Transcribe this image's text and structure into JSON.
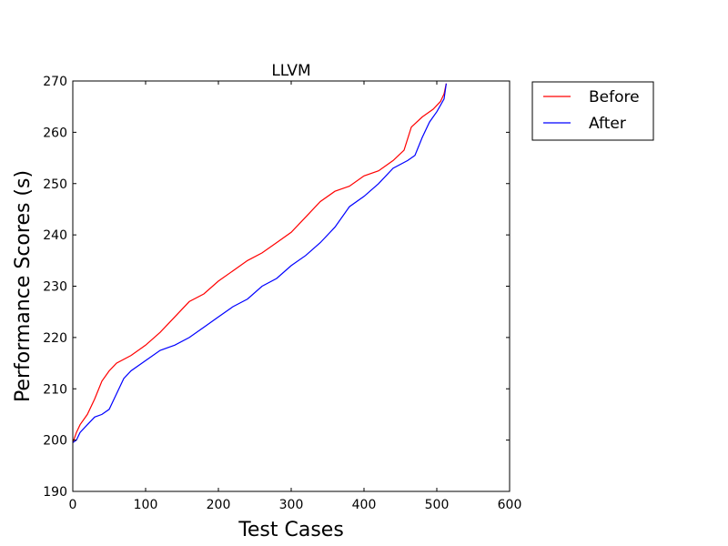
{
  "chart_data": {
    "type": "line",
    "title": "LLVM",
    "xlabel": "Test Cases",
    "ylabel": "Performance Scores (s)",
    "xlim": [
      0,
      600
    ],
    "ylim": [
      190,
      270
    ],
    "xticks": [
      0,
      100,
      200,
      300,
      400,
      500,
      600
    ],
    "yticks": [
      190,
      200,
      210,
      220,
      230,
      240,
      250,
      260,
      270
    ],
    "grid": false,
    "legend_position": "outside-top-right",
    "series": [
      {
        "name": "Before",
        "color": "#ff0000",
        "x": [
          0,
          5,
          10,
          20,
          30,
          40,
          50,
          60,
          80,
          100,
          120,
          140,
          160,
          180,
          200,
          220,
          240,
          260,
          280,
          300,
          320,
          340,
          360,
          380,
          400,
          420,
          440,
          455,
          465,
          480,
          495,
          505,
          510,
          513
        ],
        "y": [
          199.5,
          201.5,
          203,
          205,
          208,
          211.5,
          213.5,
          215,
          216.5,
          218.5,
          221,
          224,
          227,
          228.5,
          231,
          233,
          235,
          236.5,
          238.5,
          240.5,
          243.5,
          246.5,
          248.5,
          249.5,
          251.5,
          252.5,
          254.5,
          256.5,
          261,
          263,
          264.5,
          266,
          267.5,
          269.5
        ]
      },
      {
        "name": "After",
        "color": "#0000ff",
        "x": [
          0,
          5,
          10,
          20,
          30,
          40,
          50,
          60,
          70,
          80,
          100,
          120,
          140,
          160,
          180,
          200,
          220,
          240,
          260,
          280,
          300,
          320,
          340,
          360,
          380,
          400,
          420,
          440,
          460,
          470,
          480,
          490,
          500,
          510,
          513
        ],
        "y": [
          199.5,
          200,
          201.5,
          203,
          204.5,
          205,
          206,
          209,
          212,
          213.5,
          215.5,
          217.5,
          218.5,
          220,
          222,
          224,
          226,
          227.5,
          230,
          231.5,
          234,
          236,
          238.5,
          241.5,
          245.5,
          247.5,
          250,
          253,
          254.5,
          255.5,
          259,
          262,
          264,
          266.5,
          269.5
        ]
      }
    ]
  }
}
